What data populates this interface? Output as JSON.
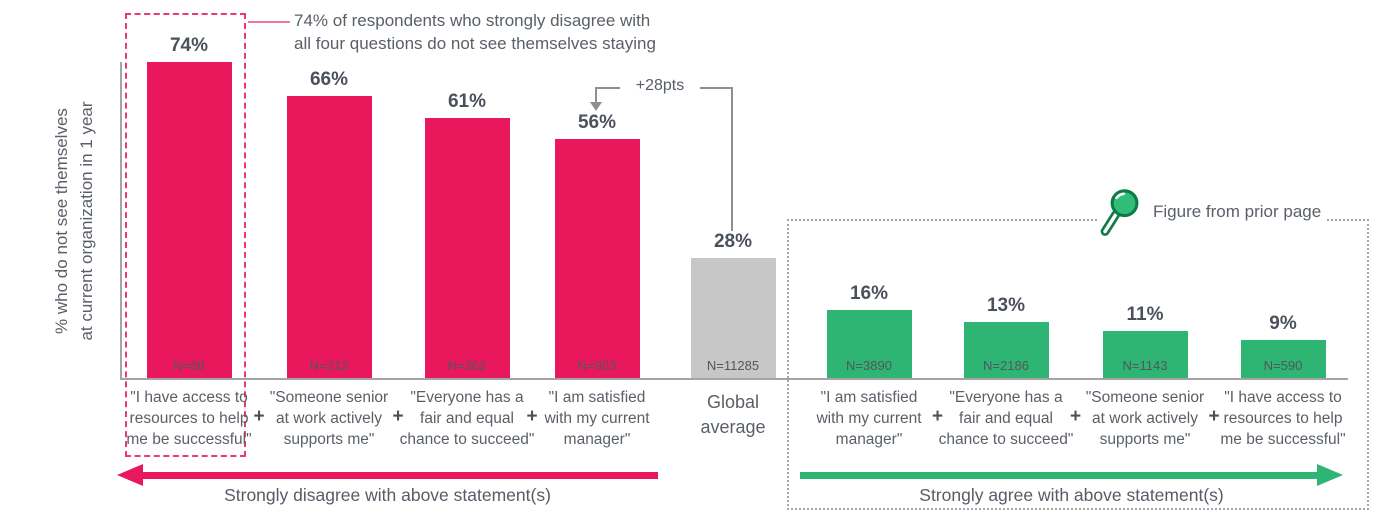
{
  "chart_data": {
    "type": "bar",
    "unit": "%",
    "ylim": [
      0,
      75
    ],
    "grid": false,
    "ylabel_lines": [
      "% who do not see themselves",
      "at current organization in 1 year"
    ],
    "plus_separator": "+",
    "series": [
      {
        "name": "Strongly disagree with above statement(s)",
        "color": "#e9185c",
        "bars": [
          {
            "category_lines": [
              "\"I have access to",
              "resources to help",
              "me be successful\""
            ],
            "value": 74,
            "value_label": "74%",
            "n": "N=88",
            "highlighted": true
          },
          {
            "category_lines": [
              "\"Someone senior",
              "at work actively",
              "supports me\""
            ],
            "value": 66,
            "value_label": "66%",
            "n": "N=212"
          },
          {
            "category_lines": [
              "\"Everyone has a",
              "fair and equal",
              "chance to succeed\""
            ],
            "value": 61,
            "value_label": "61%",
            "n": "N=362"
          },
          {
            "category_lines": [
              "\"I am satisfied",
              "with my current",
              "manager\""
            ],
            "value": 56,
            "value_label": "56%",
            "n": "N=903"
          }
        ]
      },
      {
        "name": "Global average",
        "color": "#c7c7c7",
        "bars": [
          {
            "category_lines": [
              "Global",
              "average"
            ],
            "value": 28,
            "value_label": "28%",
            "n": "N=11285"
          }
        ]
      },
      {
        "name": "Strongly agree with above statement(s)",
        "color": "#2eb573",
        "bars": [
          {
            "category_lines": [
              "\"I am satisfied",
              "with my current",
              "manager\""
            ],
            "value": 16,
            "value_label": "16%",
            "n": "N=3890"
          },
          {
            "category_lines": [
              "\"Everyone has a",
              "fair and equal",
              "chance to succeed\""
            ],
            "value": 13,
            "value_label": "13%",
            "n": "N=2186"
          },
          {
            "category_lines": [
              "\"Someone senior",
              "at work actively",
              "supports me\""
            ],
            "value": 11,
            "value_label": "11%",
            "n": "N=1143"
          },
          {
            "category_lines": [
              "\"I have access to",
              "resources to help",
              "me be successful\""
            ],
            "value": 9,
            "value_label": "9%",
            "n": "N=590"
          }
        ]
      }
    ],
    "annotations": {
      "callout_lines": [
        "74% of respondents who strongly disagree with",
        "all four questions do not see themselves staying"
      ],
      "delta_label": "+28pts",
      "figure_note": "Figure from prior page"
    },
    "footer_arrows": {
      "disagree": {
        "label": "Strongly disagree with above statement(s)",
        "direction": "left",
        "color": "#e9185c"
      },
      "agree": {
        "label": "Strongly agree with above statement(s)",
        "direction": "right",
        "color": "#2eb573"
      }
    }
  }
}
